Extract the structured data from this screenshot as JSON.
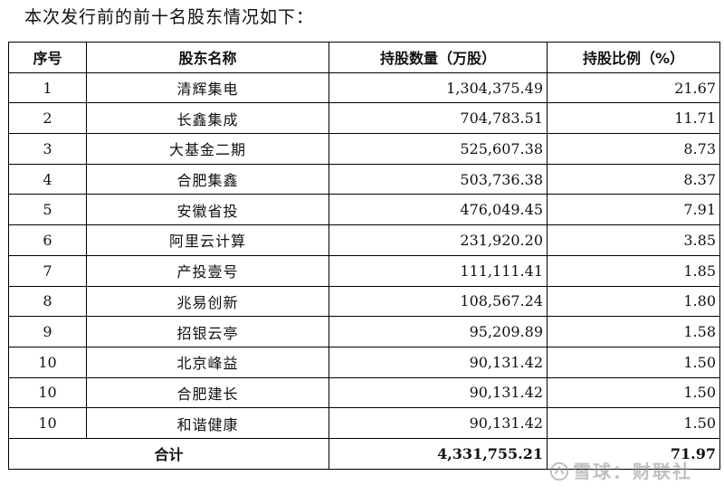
{
  "intro": "本次发行前的前十名股东情况如下：",
  "table": {
    "headers": {
      "index": "序号",
      "name": "股东名称",
      "shares": "持股数量（万股）",
      "ratio": "持股比例（%）"
    },
    "rows": [
      {
        "index": "1",
        "name": "清辉集电",
        "shares": "1,304,375.49",
        "ratio": "21.67"
      },
      {
        "index": "2",
        "name": "长鑫集成",
        "shares": "704,783.51",
        "ratio": "11.71"
      },
      {
        "index": "3",
        "name": "大基金二期",
        "shares": "525,607.38",
        "ratio": "8.73"
      },
      {
        "index": "4",
        "name": "合肥集鑫",
        "shares": "503,736.38",
        "ratio": "8.37"
      },
      {
        "index": "5",
        "name": "安徽省投",
        "shares": "476,049.45",
        "ratio": "7.91"
      },
      {
        "index": "6",
        "name": "阿里云计算",
        "shares": "231,920.20",
        "ratio": "3.85"
      },
      {
        "index": "7",
        "name": "产投壹号",
        "shares": "111,111.41",
        "ratio": "1.85"
      },
      {
        "index": "8",
        "name": "兆易创新",
        "shares": "108,567.24",
        "ratio": "1.80"
      },
      {
        "index": "9",
        "name": "招银云亭",
        "shares": "95,209.89",
        "ratio": "1.58"
      },
      {
        "index": "10",
        "name": "北京峰益",
        "shares": "90,131.42",
        "ratio": "1.50"
      },
      {
        "index": "10",
        "name": "合肥建长",
        "shares": "90,131.42",
        "ratio": "1.50"
      },
      {
        "index": "10",
        "name": "和谐健康",
        "shares": "90,131.42",
        "ratio": "1.50"
      }
    ],
    "total": {
      "label": "合计",
      "shares": "4,331,755.21",
      "ratio": "71.97"
    }
  },
  "watermark": "雪球：财联社"
}
